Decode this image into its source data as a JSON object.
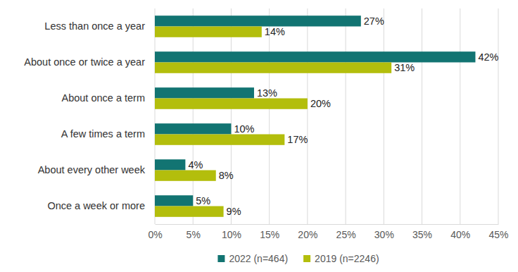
{
  "chart_data": {
    "type": "bar",
    "orientation": "horizontal",
    "categories": [
      "Less than once a year",
      "About once or twice a year",
      "About once a term",
      "A few times a term",
      "About every other week",
      "Once a week or more"
    ],
    "series": [
      {
        "name": "2022 (n=464)",
        "color": "#127472",
        "values": [
          27,
          42,
          13,
          10,
          4,
          5
        ],
        "value_labels": [
          "27%",
          "42%",
          "13%",
          "10%",
          "4%",
          "5%"
        ]
      },
      {
        "name": "2019 (n=2246)",
        "color": "#b3be0c",
        "values": [
          14,
          31,
          20,
          17,
          8,
          9
        ],
        "value_labels": [
          "14%",
          "31%",
          "20%",
          "17%",
          "8%",
          "9%"
        ]
      }
    ],
    "xlim": [
      0,
      45
    ],
    "xticks": [
      {
        "value": 0,
        "label": "0%"
      },
      {
        "value": 5,
        "label": "5%"
      },
      {
        "value": 10,
        "label": "10%"
      },
      {
        "value": 15,
        "label": "15%"
      },
      {
        "value": 20,
        "label": "20%"
      },
      {
        "value": 25,
        "label": "25%"
      },
      {
        "value": 30,
        "label": "30%"
      },
      {
        "value": 35,
        "label": "35%"
      },
      {
        "value": 40,
        "label": "40%"
      },
      {
        "value": 45,
        "label": "45%"
      }
    ],
    "grid": true,
    "data_labels": true,
    "legend": "bottom"
  }
}
